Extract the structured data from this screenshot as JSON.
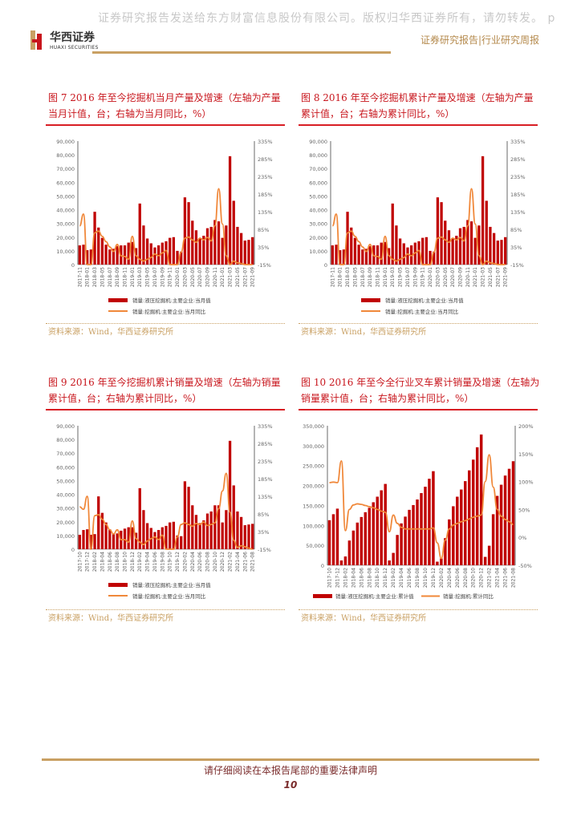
{
  "header": {
    "watermark": "证券研究报告发送给东方财富信息股份有限公司。版权归华西证券所有，请勿转发。 p",
    "logo_cn": "华西证券",
    "logo_en": "HUAXI SECURITIES",
    "report_type": "证券研究报告|行业研究周报",
    "accent_gold": "#c9a063",
    "accent_red": "#c8161d"
  },
  "figures": [
    {
      "title": "图 7  2016 年至今挖掘机当月产量及增速（左轴为产量当月计值，台；右轴为当月同比，%）",
      "source": "资料来源：Wind，华西证券研究所"
    },
    {
      "title": "图 8  2016 年至今挖掘机累计产量及增速（左轴为产量累计值，台；右轴为累计同比，%）",
      "source": "资料来源：Wind，华西证券研究所"
    },
    {
      "title": "图 9  2016 年至今挖掘机累计销量及增速（左轴为销量累计值，台；右轴为累计同比，%）",
      "source": "资料来源：Wind，华西证券研究所"
    },
    {
      "title": "图 10  2016 年至今全行业叉车累计销量及增速（左轴为销量累计值，台；右轴为累计同比，%）",
      "source": "资料来源：Wind，华西证券研究所"
    }
  ],
  "footer": {
    "note": "请仔细阅读在本报告尾部的重要法律声明",
    "page_number": "10"
  },
  "chart_data": [
    {
      "type": "bar+line",
      "bar_color": "#c00000",
      "line_color": "#f0883a",
      "categories": [
        "2017-11",
        "2017-12",
        "2018-01",
        "2018-02",
        "2018-03",
        "2018-04",
        "2018-05",
        "2018-06",
        "2018-07",
        "2018-08",
        "2018-09",
        "2018-10",
        "2018-11",
        "2018-12",
        "2019-01",
        "2019-02",
        "2019-03",
        "2019-04",
        "2019-05",
        "2019-06",
        "2019-07",
        "2019-08",
        "2019-09",
        "2019-10",
        "2019-11",
        "2019-12",
        "2020-01",
        "2020-02",
        "2020-03",
        "2020-04",
        "2020-05",
        "2020-06",
        "2020-07",
        "2020-08",
        "2020-09",
        "2020-10",
        "2020-11",
        "2020-12",
        "2021-01",
        "2021-02",
        "2021-03",
        "2021-04",
        "2021-05",
        "2021-06",
        "2021-07",
        "2021-08",
        "2021-09"
      ],
      "ylim": [
        0,
        90000
      ],
      "yticks": [
        "0",
        "10,000",
        "20,000",
        "30,000",
        "40,000",
        "50,000",
        "60,000",
        "70,000",
        "80,000",
        "90,000"
      ],
      "y2lim": [
        -15,
        335
      ],
      "y2ticks": [
        "-15%",
        "35%",
        "85%",
        "135%",
        "185%",
        "235%",
        "285%",
        "335%"
      ],
      "series": [
        {
          "name": "销量:液压挖掘机:主要企业:当月值",
          "axis": "left",
          "kind": "bar",
          "values": [
            14000,
            14500,
            10500,
            11000,
            38500,
            27000,
            19500,
            14500,
            11000,
            11500,
            13500,
            14000,
            14000,
            16000,
            16500,
            12000,
            44500,
            28500,
            19000,
            15500,
            12500,
            14000,
            16000,
            17000,
            19500,
            20000,
            10000,
            9500,
            49000,
            45500,
            32000,
            25000,
            19000,
            21000,
            26500,
            27500,
            32500,
            31500,
            19500,
            28500,
            79000,
            46500,
            27500,
            23000,
            17500,
            18000,
            20000
          ]
        },
        {
          "name": "销量:挖掘机:主要企业:当月同比",
          "axis": "right",
          "kind": "line",
          "values": [
            95,
            128,
            -15,
            -15,
            75,
            80,
            65,
            50,
            35,
            22,
            42,
            10,
            8,
            0,
            65,
            10,
            0,
            -5,
            0,
            5,
            15,
            10,
            18,
            25,
            -15,
            -15,
            -15,
            20,
            60,
            63,
            55,
            48,
            60,
            55,
            62,
            52,
            95,
            200,
            100,
            10,
            -15,
            -5,
            -10,
            -12,
            -15,
            -15,
            -15
          ]
        }
      ]
    },
    {
      "type": "bar+line",
      "bar_color": "#c00000",
      "line_color": "#f0883a",
      "categories": [
        "2017-11",
        "2017-12",
        "2018-01",
        "2018-02",
        "2018-03",
        "2018-04",
        "2018-05",
        "2018-06",
        "2018-07",
        "2018-08",
        "2018-09",
        "2018-10",
        "2018-11",
        "2018-12",
        "2019-01",
        "2019-02",
        "2019-03",
        "2019-04",
        "2019-05",
        "2019-06",
        "2019-07",
        "2019-08",
        "2019-09",
        "2019-10",
        "2019-11",
        "2019-12",
        "2020-01",
        "2020-02",
        "2020-03",
        "2020-04",
        "2020-05",
        "2020-06",
        "2020-07",
        "2020-08",
        "2020-09",
        "2020-10",
        "2020-11",
        "2020-12",
        "2021-01",
        "2021-02",
        "2021-03",
        "2021-04",
        "2021-05",
        "2021-06",
        "2021-07",
        "2021-08",
        "2021-09"
      ],
      "ylim": [
        0,
        90000
      ],
      "yticks": [
        "0",
        "10,000",
        "20,000",
        "30,000",
        "40,000",
        "50,000",
        "60,000",
        "70,000",
        "80,000",
        "90,000"
      ],
      "y2lim": [
        -15,
        335
      ],
      "y2ticks": [
        "-15%",
        "35%",
        "85%",
        "135%",
        "185%",
        "235%",
        "285%",
        "335%"
      ],
      "series": [
        {
          "name": "销量:液压挖掘机:主要企业:当月值",
          "axis": "left",
          "kind": "bar",
          "values": [
            14000,
            14500,
            10500,
            11000,
            38500,
            27000,
            19500,
            14500,
            11000,
            11500,
            13500,
            14000,
            14000,
            16000,
            16500,
            12000,
            44500,
            28500,
            19000,
            15500,
            12500,
            14000,
            16000,
            17000,
            19500,
            20000,
            10000,
            9500,
            49000,
            45500,
            32000,
            25000,
            19000,
            21000,
            26500,
            27500,
            32500,
            31500,
            19500,
            28500,
            79000,
            46500,
            27500,
            23000,
            17500,
            18000,
            20000
          ]
        },
        {
          "name": "销量:挖掘机:主要企业:当月同比",
          "axis": "right",
          "kind": "line",
          "values": [
            95,
            128,
            -15,
            -15,
            75,
            80,
            65,
            50,
            35,
            22,
            42,
            10,
            8,
            0,
            65,
            10,
            0,
            -5,
            0,
            5,
            15,
            10,
            18,
            25,
            -15,
            -15,
            -15,
            20,
            60,
            63,
            55,
            48,
            60,
            55,
            62,
            52,
            95,
            200,
            100,
            10,
            -15,
            -5,
            -10,
            -12,
            -15,
            -15,
            -15
          ]
        }
      ]
    },
    {
      "type": "bar+line",
      "bar_color": "#c00000",
      "line_color": "#f0883a",
      "categories": [
        "2017-10",
        "2017-11",
        "2017-12",
        "2018-01",
        "2018-02",
        "2018-03",
        "2018-04",
        "2018-05",
        "2018-06",
        "2018-07",
        "2018-08",
        "2018-09",
        "2018-10",
        "2018-11",
        "2018-12",
        "2019-01",
        "2019-02",
        "2019-03",
        "2019-04",
        "2019-05",
        "2019-06",
        "2019-07",
        "2019-08",
        "2019-09",
        "2019-10",
        "2019-11",
        "2019-12",
        "2020-01",
        "2020-02",
        "2020-03",
        "2020-04",
        "2020-05",
        "2020-06",
        "2020-07",
        "2020-08",
        "2020-09",
        "2020-10",
        "2020-11",
        "2020-12",
        "2021-01",
        "2021-02",
        "2021-03",
        "2021-04",
        "2021-05",
        "2021-06",
        "2021-07",
        "2021-08"
      ],
      "ylim": [
        0,
        90000
      ],
      "yticks": [
        "0",
        "10,000",
        "20,000",
        "30,000",
        "40,000",
        "50,000",
        "60,000",
        "70,000",
        "80,000",
        "90,000"
      ],
      "y2lim": [
        -15,
        335
      ],
      "y2ticks": [
        "-15%",
        "35%",
        "85%",
        "135%",
        "185%",
        "235%",
        "285%",
        "335%"
      ],
      "series": [
        {
          "name": "销量:液压挖掘机:主要企业:当月值",
          "axis": "left",
          "kind": "bar",
          "values": [
            10500,
            14000,
            14500,
            10500,
            11000,
            38500,
            26500,
            19500,
            14500,
            11000,
            11500,
            13500,
            15000,
            16000,
            16000,
            12000,
            44500,
            28500,
            19000,
            15500,
            12500,
            14000,
            16000,
            17000,
            19500,
            20000,
            10000,
            9500,
            49500,
            45500,
            32000,
            25000,
            19000,
            21000,
            26000,
            27500,
            32000,
            32000,
            19500,
            28500,
            79000,
            46500,
            27500,
            23500,
            17500,
            18000,
            18500
          ]
        },
        {
          "name": "销量:挖掘机:主要企业:当月同比",
          "axis": "right",
          "kind": "line",
          "values": [
            105,
            98,
            135,
            -15,
            80,
            83,
            70,
            55,
            40,
            28,
            40,
            12,
            12,
            5,
            65,
            15,
            5,
            -2,
            8,
            15,
            20,
            12,
            25,
            -15,
            -15,
            -15,
            20,
            55,
            60,
            55,
            50,
            58,
            55,
            62,
            52,
            55,
            60,
            100,
            150,
            200,
            90,
            10,
            -10,
            -5,
            -8,
            -12,
            -15
          ]
        }
      ]
    },
    {
      "type": "bar+line",
      "bar_color": "#c00000",
      "line_color": "#f0883a",
      "categories": [
        "2017-10",
        "2017-11",
        "2017-12",
        "2018-01",
        "2018-02",
        "2018-03",
        "2018-04",
        "2018-05",
        "2018-06",
        "2018-07",
        "2018-08",
        "2018-09",
        "2018-10",
        "2018-11",
        "2018-12",
        "2019-01",
        "2019-02",
        "2019-03",
        "2019-04",
        "2019-05",
        "2019-06",
        "2019-07",
        "2019-08",
        "2019-09",
        "2019-10",
        "2019-11",
        "2019-12",
        "2020-01",
        "2020-02",
        "2020-03",
        "2020-04",
        "2020-05",
        "2020-06",
        "2020-07",
        "2020-08",
        "2020-09",
        "2020-10",
        "2020-11",
        "2020-12",
        "2021-01",
        "2021-02",
        "2021-03",
        "2021-04",
        "2021-05",
        "2021-06",
        "2021-07",
        "2021-08"
      ],
      "ylim": [
        0,
        350000
      ],
      "yticks": [
        "0",
        "50,000",
        "100,000",
        "150,000",
        "200,000",
        "250,000",
        "300,000",
        "350,000"
      ],
      "y2lim": [
        -50,
        200
      ],
      "y2ticks": [
        "-50%",
        "0%",
        "50%",
        "100%",
        "150%",
        "200%"
      ],
      "series": [
        {
          "name": "销量:液压挖掘机:主要企业:累计值",
          "axis": "left",
          "kind": "bar",
          "values": [
            113000,
            128000,
            142000,
            12000,
            22000,
            62000,
            87000,
            107000,
            121000,
            133000,
            144000,
            158000,
            172000,
            188000,
            204000,
            12000,
            31000,
            76000,
            105000,
            122000,
            139000,
            151000,
            165000,
            181000,
            197000,
            217000,
            236000,
            9000,
            17000,
            68000,
            115000,
            148000,
            172000,
            190000,
            211000,
            238000,
            265000,
            296000,
            328000,
            21000,
            49000,
            128000,
            174000,
            202000,
            225000,
            242000,
            261000
          ]
        },
        {
          "name": "销量:挖掘机:累计同比",
          "axis": "right",
          "kind": "line",
          "values": [
            98,
            99,
            98,
            137,
            12,
            50,
            58,
            60,
            59,
            57,
            55,
            53,
            50,
            47,
            45,
            10,
            40,
            25,
            18,
            15,
            15,
            15,
            15,
            15,
            15,
            15,
            17,
            -10,
            -38,
            -5,
            15,
            22,
            25,
            28,
            30,
            33,
            36,
            38,
            40,
            100,
            148,
            90,
            50,
            38,
            32,
            28,
            23
          ]
        }
      ]
    }
  ]
}
